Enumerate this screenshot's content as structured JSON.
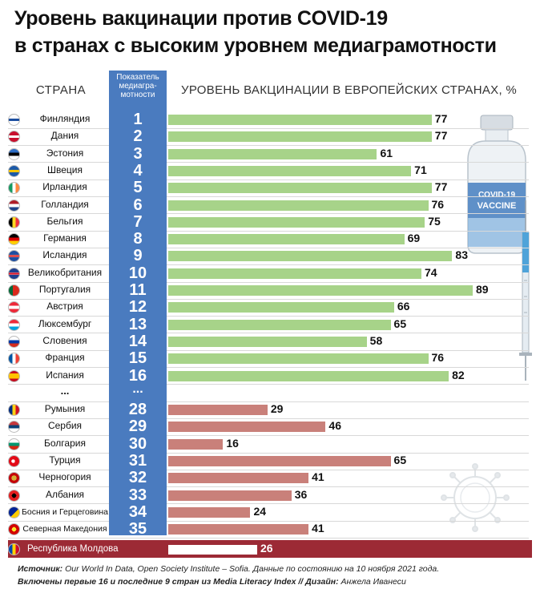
{
  "title_line1": "Уровень вакцинации против COVID-19",
  "title_line2": "в странах с высоким уровнем медиаграмотности",
  "header": {
    "country": "СТРАНА",
    "rank_line1": "Показатель",
    "rank_line2": "медиагра-",
    "rank_line3": "мотности",
    "bars": "УРОВЕНЬ ВАКЦИНАЦИИ В ЕВРОПЕЙСКИХ СТРАНАХ, %"
  },
  "vaccine_label": {
    "line1": "COVID-19",
    "line2": "VACCINE"
  },
  "ellipsis": {
    "country": "...",
    "rank": "..."
  },
  "chart_data": {
    "type": "bar",
    "orientation": "horizontal",
    "unit": "%",
    "top_group": [
      {
        "country": "Финляндия",
        "rank": "1",
        "value": 77
      },
      {
        "country": "Дания",
        "rank": "2",
        "value": 77
      },
      {
        "country": "Эстония",
        "rank": "3",
        "value": 61
      },
      {
        "country": "Швеция",
        "rank": "4",
        "value": 71
      },
      {
        "country": "Ирландия",
        "rank": "5",
        "value": 77
      },
      {
        "country": "Голландия",
        "rank": "6",
        "value": 76
      },
      {
        "country": "Бельгия",
        "rank": "7",
        "value": 75
      },
      {
        "country": "Германия",
        "rank": "8",
        "value": 69
      },
      {
        "country": "Исландия",
        "rank": "9",
        "value": 83
      },
      {
        "country": "Великобритания",
        "rank": "10",
        "value": 74
      },
      {
        "country": "Португалия",
        "rank": "11",
        "value": 89
      },
      {
        "country": "Австрия",
        "rank": "12",
        "value": 66
      },
      {
        "country": "Люксембург",
        "rank": "13",
        "value": 65
      },
      {
        "country": "Словения",
        "rank": "14",
        "value": 58
      },
      {
        "country": "Франция",
        "rank": "15",
        "value": 76
      },
      {
        "country": "Испания",
        "rank": "16",
        "value": 82
      }
    ],
    "bottom_group": [
      {
        "country": "Румыния",
        "rank": "28",
        "value": 29
      },
      {
        "country": "Сербия",
        "rank": "29",
        "value": 46
      },
      {
        "country": "Болгария",
        "rank": "30",
        "value": 16
      },
      {
        "country": "Турция",
        "rank": "31",
        "value": 65
      },
      {
        "country": "Черногория",
        "rank": "32",
        "value": 41
      },
      {
        "country": "Албания",
        "rank": "33",
        "value": 36
      },
      {
        "country": "Босния и Герцеговина",
        "rank": "34",
        "value": 24
      },
      {
        "country": "Северная Македония",
        "rank": "35",
        "value": 41
      }
    ],
    "highlight": {
      "country": "Республика Молдова",
      "value": 26
    },
    "colors": {
      "top": "#a7d389",
      "bottom": "#c9807a",
      "rank_column": "#4a7bbf",
      "highlight_row": "#9c2a35"
    }
  },
  "footer": {
    "source_label": "Источник:",
    "source_text": "Our World In Data,  Open Society Institute – Sofia. Данные по состоянию на 10 ноября 2021 года.",
    "included_text": "Включены первые 16 и последние 9 стран из",
    "index_name": "Media Literacy Index",
    "separator": "//",
    "design_label": "Дизайн:",
    "design_name": "Анжела Иванеси"
  }
}
